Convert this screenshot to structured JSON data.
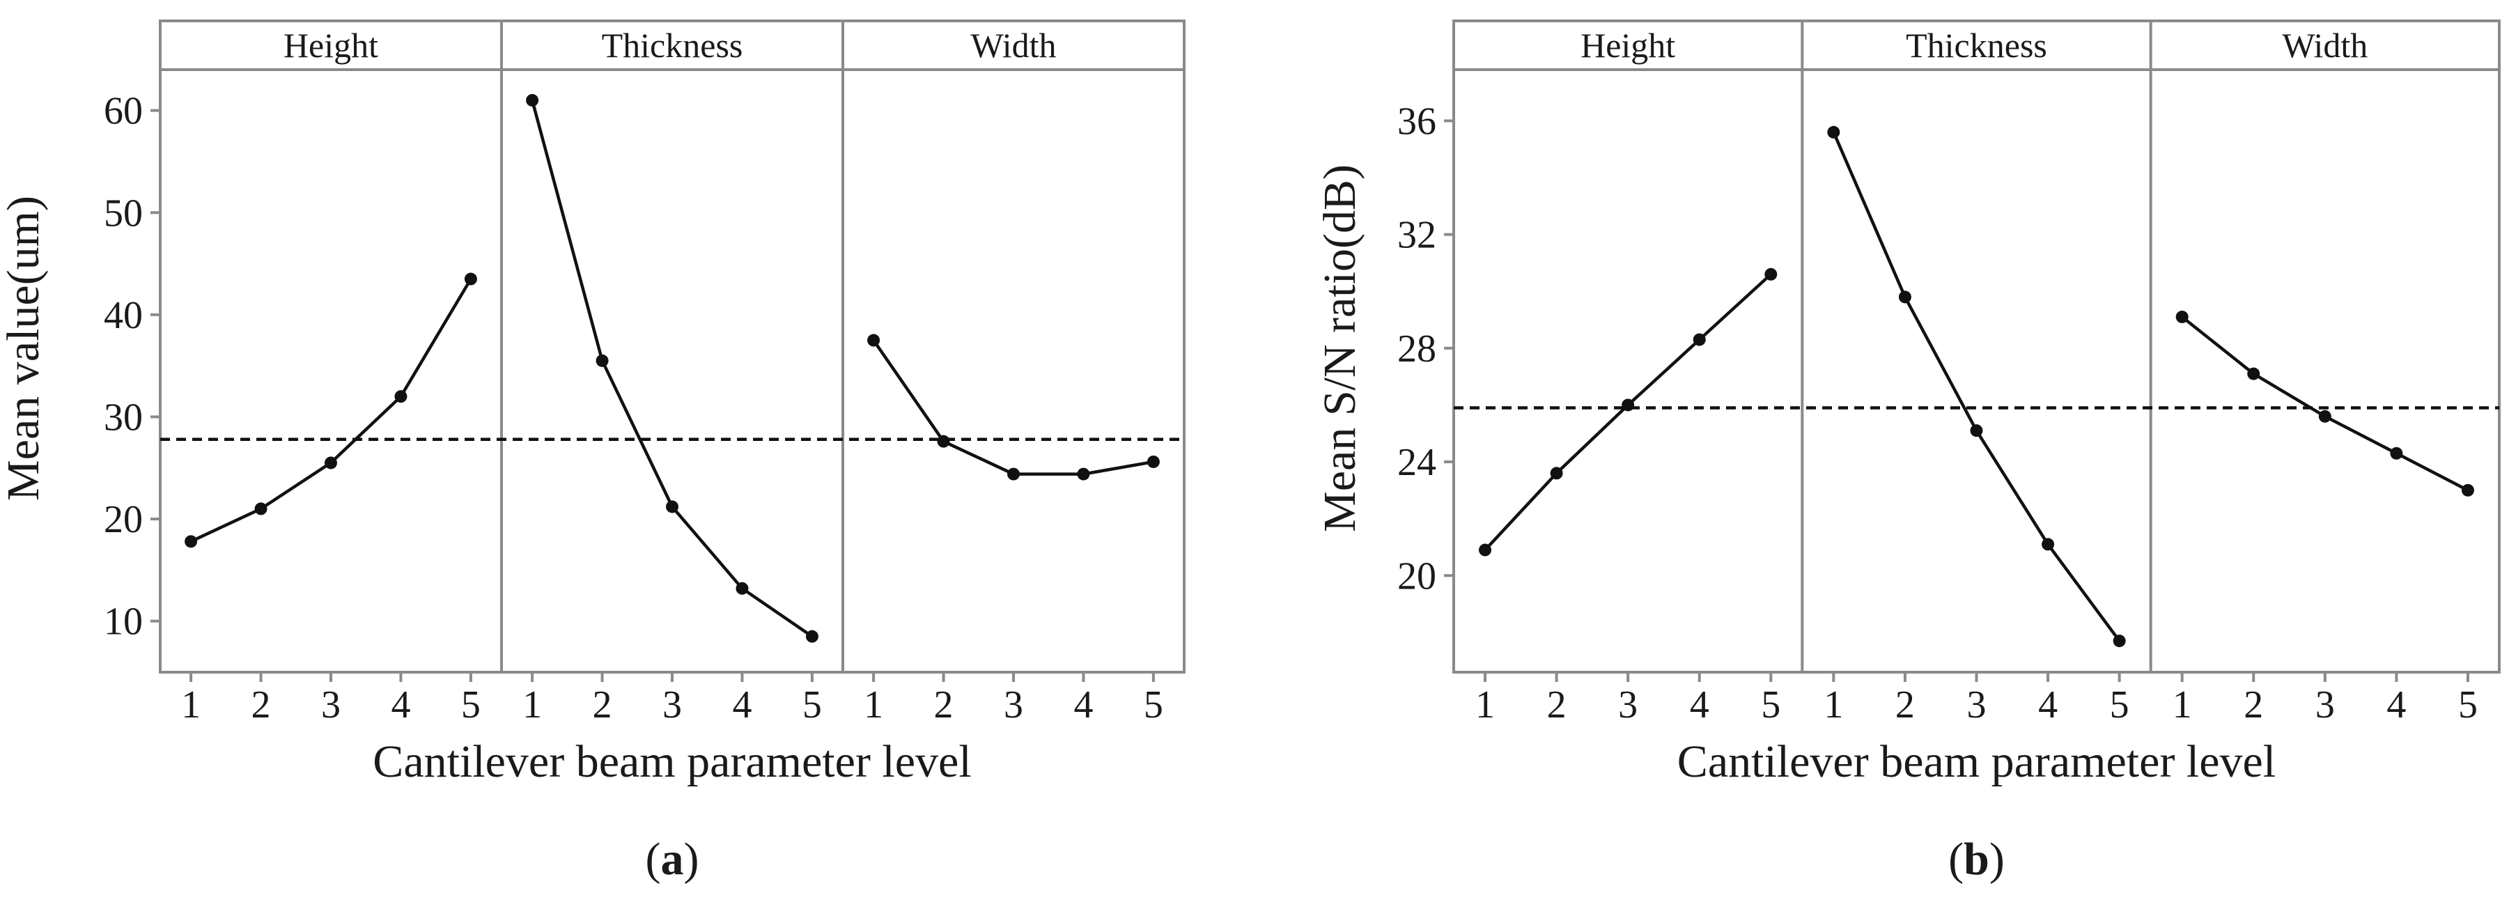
{
  "chart_data": [
    {
      "type": "line",
      "panel_label": "a",
      "ylabel": "Mean value(um)",
      "xlabel": "Cantilever beam parameter level",
      "x": [
        1,
        2,
        3,
        4,
        5
      ],
      "x_tick_labels": [
        "1",
        "2",
        "3",
        "4",
        "5"
      ],
      "ylim": [
        5,
        64
      ],
      "y_ticks": [
        10,
        20,
        30,
        40,
        50,
        60
      ],
      "y_tick_labels": [
        "10",
        "20",
        "30",
        "40",
        "50",
        "60"
      ],
      "reference_line": 27.8,
      "series": [
        {
          "name": "Height",
          "values": [
            17.8,
            21.0,
            25.5,
            32.0,
            43.5
          ]
        },
        {
          "name": "Thickness",
          "values": [
            61.0,
            35.5,
            21.2,
            13.2,
            8.5
          ]
        },
        {
          "name": "Width",
          "values": [
            37.5,
            27.6,
            24.4,
            24.4,
            25.6
          ]
        }
      ]
    },
    {
      "type": "line",
      "panel_label": "b",
      "ylabel": "Mean S/N ratio(dB)",
      "xlabel": "Cantilever beam parameter level",
      "x": [
        1,
        2,
        3,
        4,
        5
      ],
      "x_tick_labels": [
        "1",
        "2",
        "3",
        "4",
        "5"
      ],
      "ylim": [
        16.6,
        37.8
      ],
      "y_ticks": [
        20,
        24,
        28,
        32,
        36
      ],
      "y_tick_labels": [
        "20",
        "24",
        "28",
        "32",
        "36"
      ],
      "reference_line": 25.9,
      "series": [
        {
          "name": "Height",
          "values": [
            20.9,
            23.6,
            26.0,
            28.3,
            30.6
          ]
        },
        {
          "name": "Thickness",
          "values": [
            35.6,
            29.8,
            25.1,
            21.1,
            17.7
          ]
        },
        {
          "name": "Width",
          "values": [
            29.1,
            27.1,
            25.6,
            24.3,
            23.0
          ]
        }
      ]
    }
  ],
  "labels": {
    "a": "a",
    "b": "b"
  }
}
